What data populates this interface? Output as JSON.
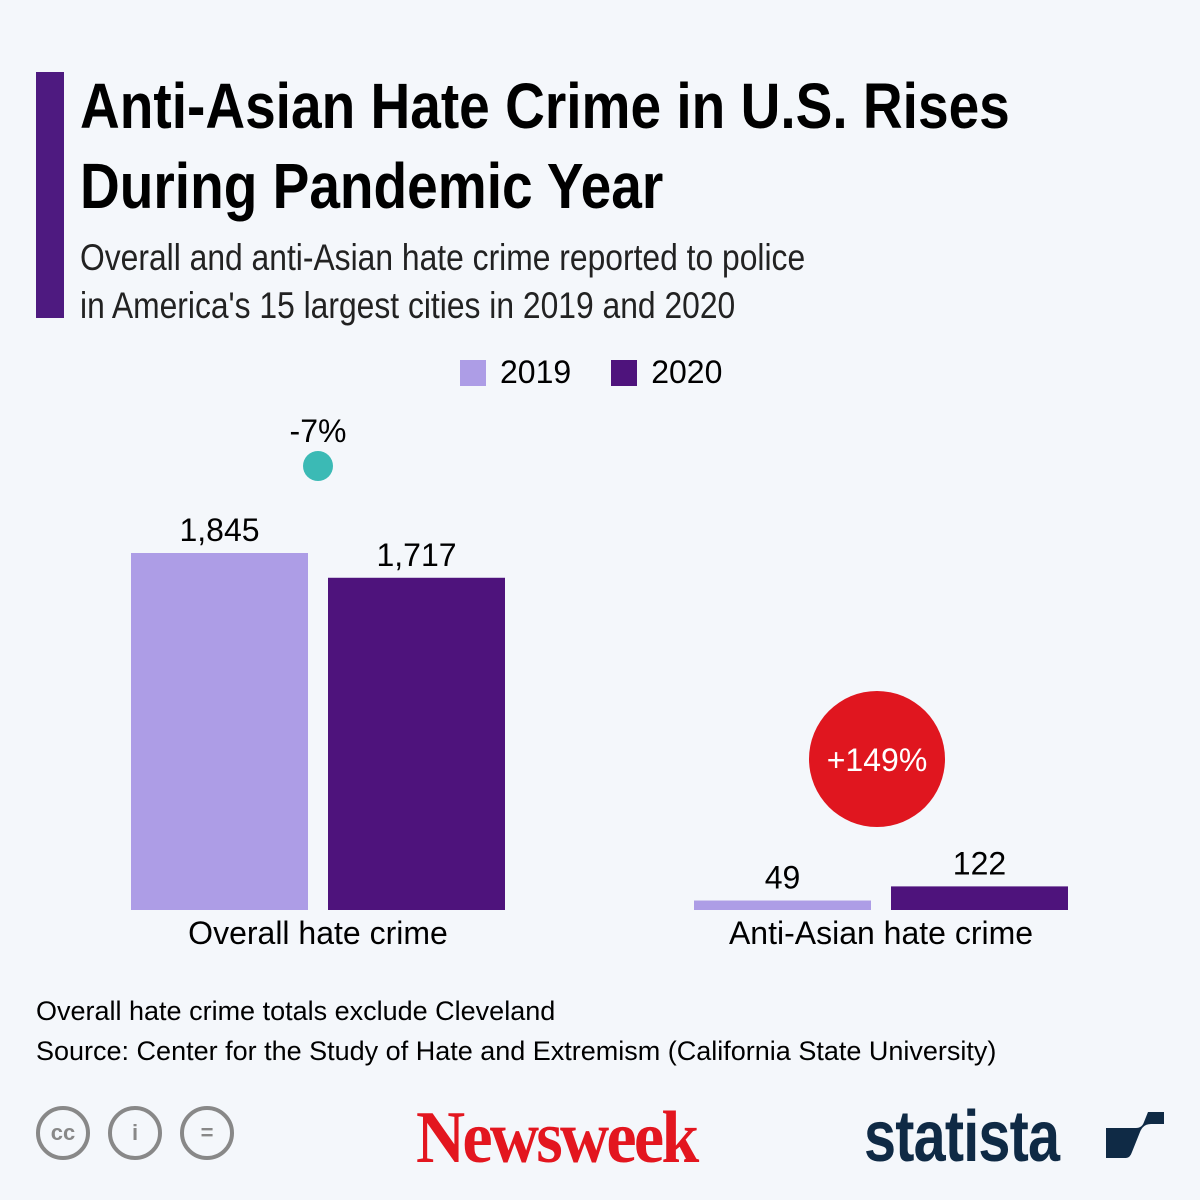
{
  "header": {
    "title_line1": "Anti-Asian Hate Crime in U.S. Rises",
    "title_line2": "During Pandemic Year",
    "subtitle_line1": "Overall and anti-Asian hate crime reported to police",
    "subtitle_line2": "in America's 15 largest cities in 2019 and 2020"
  },
  "colors": {
    "accent": "#4e1a80",
    "series_2019": "#ad9de6",
    "series_2020": "#4e137c",
    "negative_change": "#3bbab5",
    "positive_change": "#e0161f"
  },
  "chart_data": {
    "type": "bar",
    "categories": [
      "Overall hate crime",
      "Anti-Asian hate crime"
    ],
    "series": [
      {
        "name": "2019",
        "values": [
          1845,
          49
        ],
        "labels": [
          "1,845",
          "49"
        ]
      },
      {
        "name": "2020",
        "values": [
          1717,
          122
        ],
        "labels": [
          "1,717",
          "122"
        ]
      }
    ],
    "annotations": [
      "-7%",
      "+149%"
    ],
    "legend": "top-center",
    "grid": false,
    "ylim": [
      0,
      1845
    ]
  },
  "footer": {
    "note": "Overall hate crime totals exclude Cleveland",
    "source": "Source: Center for the Study of Hate and Extremism (California State University)",
    "license_icons": [
      "cc-icon",
      "by-icon",
      "nd-icon"
    ],
    "logos": [
      "Newsweek",
      "statista"
    ]
  }
}
